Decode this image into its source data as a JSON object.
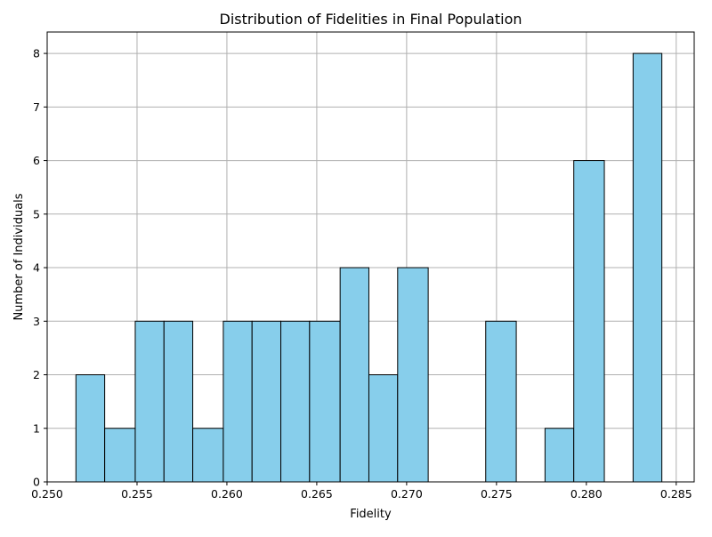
{
  "chart_data": {
    "type": "bar",
    "title": "Distribution of Fidelities in Final Population",
    "xlabel": "Fidelity",
    "ylabel": "Number of Individuals",
    "xlim": [
      0.25,
      0.286
    ],
    "ylim": [
      0,
      8.4
    ],
    "x_ticks": [
      {
        "value": 0.25,
        "label": "0.250"
      },
      {
        "value": 0.255,
        "label": "0.255"
      },
      {
        "value": 0.26,
        "label": "0.260"
      },
      {
        "value": 0.265,
        "label": "0.265"
      },
      {
        "value": 0.27,
        "label": "0.270"
      },
      {
        "value": 0.275,
        "label": "0.275"
      },
      {
        "value": 0.28,
        "label": "0.280"
      },
      {
        "value": 0.285,
        "label": "0.285"
      }
    ],
    "y_ticks": [
      {
        "value": 0,
        "label": "0"
      },
      {
        "value": 1,
        "label": "1"
      },
      {
        "value": 2,
        "label": "2"
      },
      {
        "value": 3,
        "label": "3"
      },
      {
        "value": 4,
        "label": "4"
      },
      {
        "value": 5,
        "label": "5"
      },
      {
        "value": 6,
        "label": "6"
      },
      {
        "value": 7,
        "label": "7"
      },
      {
        "value": 8,
        "label": "8"
      }
    ],
    "grid": true,
    "bins": [
      {
        "start": 0.2516,
        "end": 0.2532,
        "count": 2
      },
      {
        "start": 0.2532,
        "end": 0.2549,
        "count": 1
      },
      {
        "start": 0.2549,
        "end": 0.2565,
        "count": 3
      },
      {
        "start": 0.2565,
        "end": 0.2581,
        "count": 3
      },
      {
        "start": 0.2581,
        "end": 0.2598,
        "count": 1
      },
      {
        "start": 0.2598,
        "end": 0.2614,
        "count": 3
      },
      {
        "start": 0.2614,
        "end": 0.263,
        "count": 3
      },
      {
        "start": 0.263,
        "end": 0.2646,
        "count": 3
      },
      {
        "start": 0.2646,
        "end": 0.2663,
        "count": 3
      },
      {
        "start": 0.2663,
        "end": 0.2679,
        "count": 4
      },
      {
        "start": 0.2679,
        "end": 0.2695,
        "count": 2
      },
      {
        "start": 0.2695,
        "end": 0.2712,
        "count": 4
      },
      {
        "start": 0.2712,
        "end": 0.2728,
        "count": 0
      },
      {
        "start": 0.2728,
        "end": 0.2744,
        "count": 0
      },
      {
        "start": 0.2744,
        "end": 0.2761,
        "count": 3
      },
      {
        "start": 0.2761,
        "end": 0.2777,
        "count": 0
      },
      {
        "start": 0.2777,
        "end": 0.2793,
        "count": 1
      },
      {
        "start": 0.2793,
        "end": 0.281,
        "count": 6
      },
      {
        "start": 0.281,
        "end": 0.2826,
        "count": 0
      },
      {
        "start": 0.2826,
        "end": 0.2842,
        "count": 8
      }
    ],
    "colors": {
      "bar_fill": "#87ceeb",
      "bar_edge": "#000000",
      "grid": "#b0b0b0",
      "axis": "#000000"
    }
  }
}
